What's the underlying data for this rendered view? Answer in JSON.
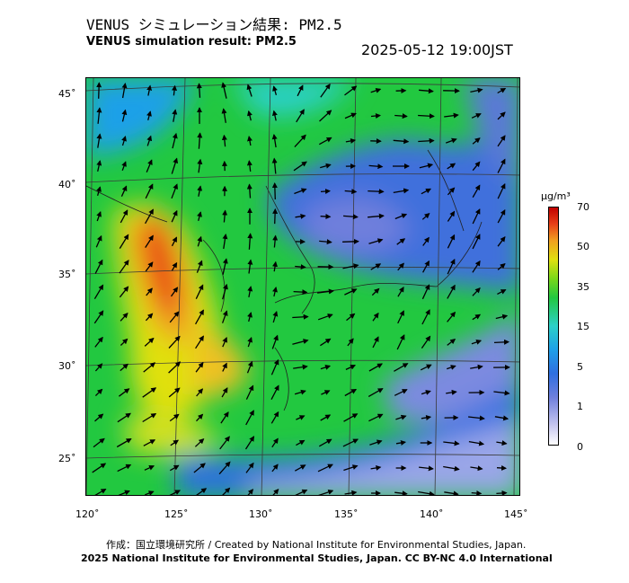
{
  "header": {
    "title_jp": "VENUS シミュレーション結果: PM2.5",
    "title_en": "VENUS simulation result: PM2.5",
    "timestamp": "2025-05-12 19:00JST"
  },
  "map": {
    "variable": "PM2.5",
    "lat_ticks": [
      "45˚",
      "40˚",
      "35˚",
      "30˚",
      "25˚"
    ],
    "lon_ticks": [
      "120˚",
      "125˚",
      "130˚",
      "135˚",
      "140˚",
      "145˚"
    ],
    "background_color": "#22c840",
    "high_color": "#e84018",
    "low_color": "#6f7fdc",
    "arrow_color": "#000000"
  },
  "legend": {
    "unit": "µg/m³",
    "labels": [
      "70",
      "50",
      "35",
      "15",
      "5",
      "1",
      "0"
    ]
  },
  "footer": {
    "credit_jp": "作成：国立環境研究所 / Created by National Institute for Environmental Studies, Japan.",
    "copyright": "2025 National Institute for Environmental Studies, Japan. CC BY-NC 4.0 International"
  }
}
